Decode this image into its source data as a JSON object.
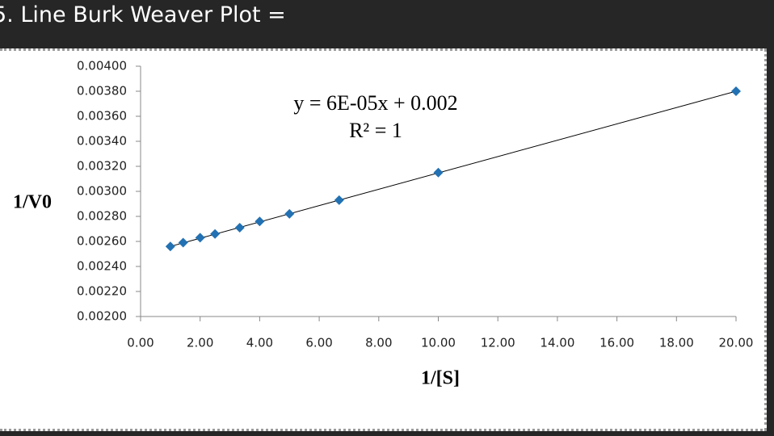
{
  "header": {
    "title": "5. Line Burk Weaver Plot ="
  },
  "chart_data": {
    "type": "scatter",
    "x_label": "1/[S]",
    "y_label": "1/V0",
    "annotations": [
      "y = 6E-05x + 0.002",
      "R² = 1"
    ],
    "series": [
      {
        "name": "1/V0",
        "color": "#2271b3",
        "x": [
          1,
          1.43,
          2,
          2.5,
          3.33,
          4,
          5,
          6.67,
          10,
          20
        ],
        "values": [
          0.00256,
          0.00259,
          0.00263,
          0.00266,
          0.00271,
          0.00276,
          0.00282,
          0.00293,
          0.00315,
          0.0038
        ]
      }
    ],
    "trendline": true,
    "xlim": [
      0,
      20
    ],
    "xticks": [
      {
        "value": 0,
        "label": "0.00"
      },
      {
        "value": 2,
        "label": "2.00"
      },
      {
        "value": 4,
        "label": "4.00"
      },
      {
        "value": 6,
        "label": "6.00"
      },
      {
        "value": 8,
        "label": "8.00"
      },
      {
        "value": 10,
        "label": "10.00"
      },
      {
        "value": 12,
        "label": "12.00"
      },
      {
        "value": 14,
        "label": "14.00"
      },
      {
        "value": 16,
        "label": "16.00"
      },
      {
        "value": 18,
        "label": "18.00"
      },
      {
        "value": 20,
        "label": "20.00"
      }
    ],
    "ylim": [
      0.002,
      0.004
    ],
    "yticks": [
      {
        "value": 0.002,
        "label": "0.00200"
      },
      {
        "value": 0.0022,
        "label": "0.00220"
      },
      {
        "value": 0.0024,
        "label": "0.00240"
      },
      {
        "value": 0.0026,
        "label": "0.00260"
      },
      {
        "value": 0.0028,
        "label": "0.00280"
      },
      {
        "value": 0.003,
        "label": "0.00300"
      },
      {
        "value": 0.0032,
        "label": "0.00320"
      },
      {
        "value": 0.0034,
        "label": "0.00340"
      },
      {
        "value": 0.0036,
        "label": "0.00360"
      },
      {
        "value": 0.0038,
        "label": "0.00380"
      },
      {
        "value": 0.004,
        "label": "0.00400"
      }
    ]
  }
}
